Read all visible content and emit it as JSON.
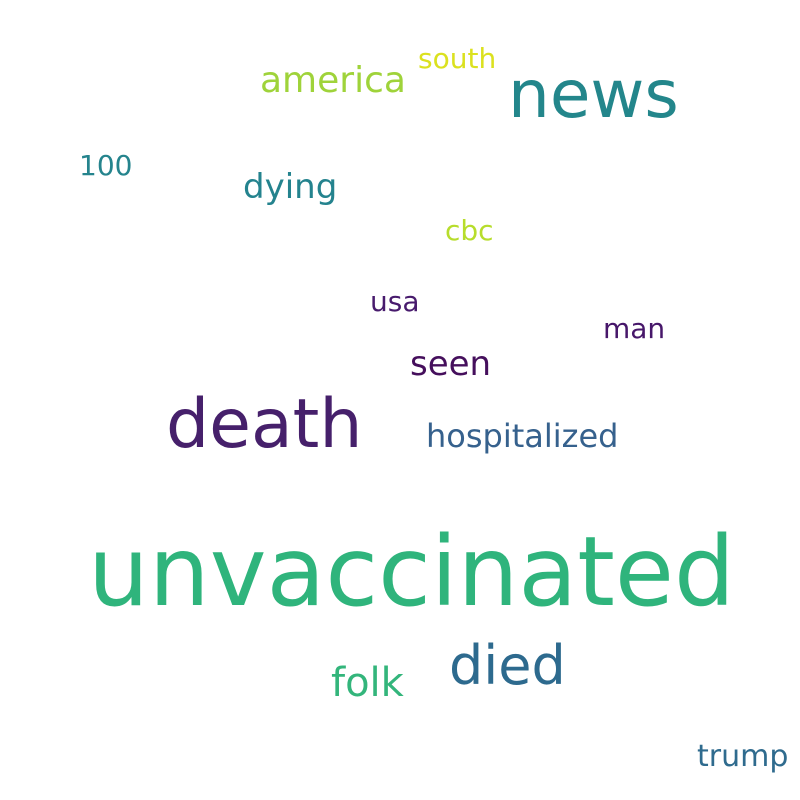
{
  "background_color": "#ffffff",
  "words": {
    "unvaccinated": {
      "text": "unvaccinated",
      "color": "#2fb47c"
    },
    "death": {
      "text": "death",
      "color": "#46206b"
    },
    "news": {
      "text": "news",
      "color": "#23868b"
    },
    "died": {
      "text": "died",
      "color": "#2d6a8e"
    },
    "folk": {
      "text": "folk",
      "color": "#33b57b"
    },
    "america": {
      "text": "america",
      "color": "#9fd33a"
    },
    "hospitalized": {
      "text": "hospitalized",
      "color": "#36618d"
    },
    "dying": {
      "text": "dying",
      "color": "#24838e"
    },
    "seen": {
      "text": "seen",
      "color": "#450f5c"
    },
    "trump": {
      "text": "trump",
      "color": "#2f6b8e"
    },
    "south": {
      "text": "south",
      "color": "#dbe11f"
    },
    "man": {
      "text": "man",
      "color": "#47176a"
    },
    "usa": {
      "text": "usa",
      "color": "#481b6d"
    },
    "n100": {
      "text": "100",
      "color": "#25848d"
    },
    "cbc": {
      "text": "cbc",
      "color": "#b7dd2c"
    }
  }
}
